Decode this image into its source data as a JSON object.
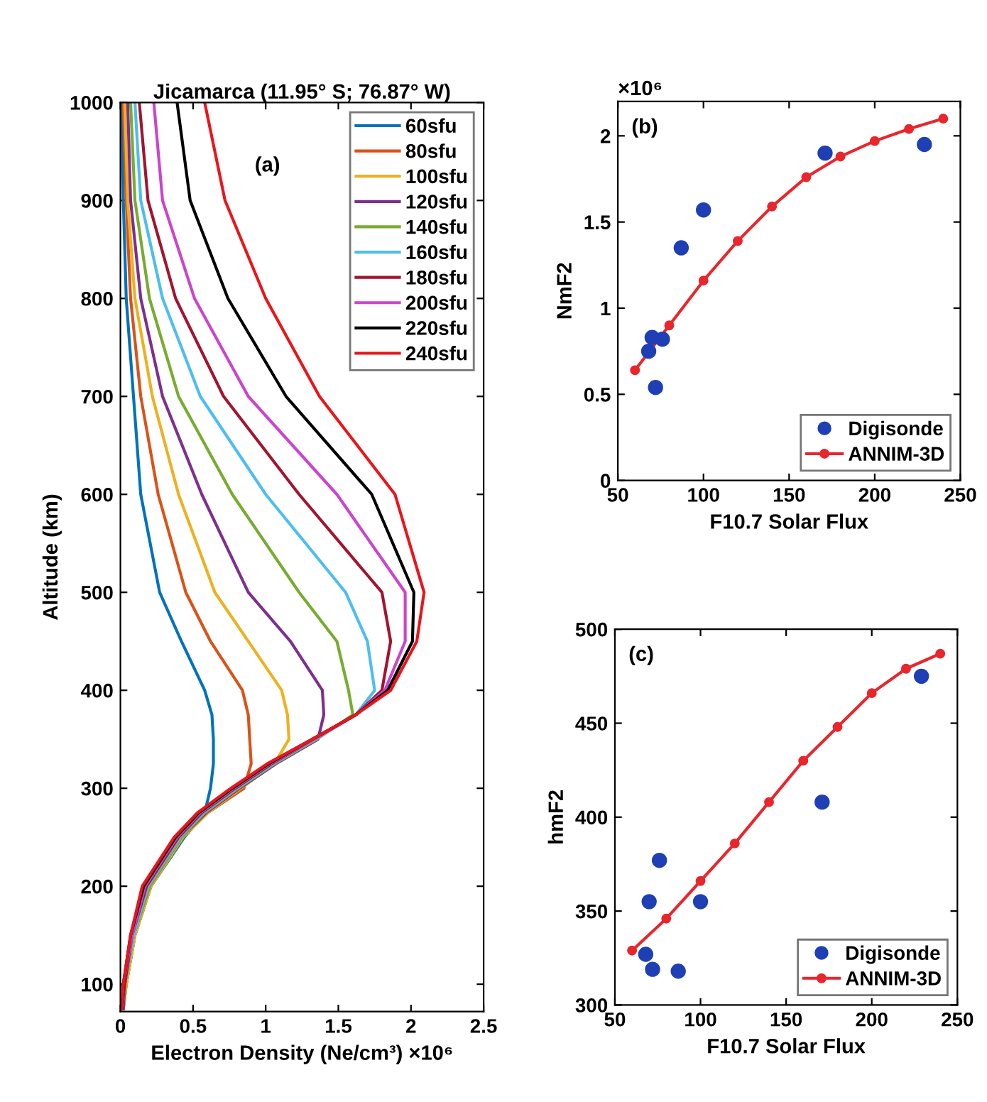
{
  "chart_data": [
    {
      "type": "line",
      "title": "Jicamarca (11.95° S; 76.87° W)",
      "xlabel": "Electron Density (Ne/cm³) ×10⁶",
      "ylabel": "Altitude (km)",
      "annotations": [
        "(a)"
      ],
      "xlim": [
        0,
        2.5
      ],
      "xticks": [
        0,
        0.5,
        1,
        1.5,
        2,
        2.5
      ],
      "ylim": [
        72,
        1000
      ],
      "yticks": [
        100,
        200,
        300,
        400,
        500,
        600,
        700,
        800,
        900,
        1000
      ],
      "legend": "top right",
      "grid": false,
      "series": [
        {
          "name": "60sfu",
          "color": "#0072bd",
          "x": [
            0.01,
            0.02,
            0.04,
            0.09,
            0.14,
            0.27,
            0.42,
            0.58,
            0.63,
            0.64,
            0.64,
            0.62,
            0.58,
            0.44,
            0.21,
            0.1,
            0.04,
            0.02
          ],
          "values": [
            1000,
            900,
            800,
            700,
            600,
            500,
            450,
            400,
            375,
            350,
            325,
            300,
            275,
            250,
            200,
            150,
            100,
            75
          ]
        },
        {
          "name": "80sfu",
          "color": "#d95319",
          "x": [
            0.02,
            0.04,
            0.07,
            0.14,
            0.26,
            0.45,
            0.62,
            0.84,
            0.88,
            0.89,
            0.9,
            0.85,
            0.6,
            0.43,
            0.21,
            0.1,
            0.04,
            0.02
          ],
          "values": [
            1000,
            900,
            800,
            700,
            600,
            500,
            450,
            400,
            375,
            350,
            325,
            300,
            275,
            250,
            200,
            150,
            100,
            75
          ]
        },
        {
          "name": "100sfu",
          "color": "#edb120",
          "x": [
            0.03,
            0.05,
            0.1,
            0.22,
            0.4,
            0.65,
            0.88,
            1.11,
            1.15,
            1.16,
            1.06,
            0.83,
            0.6,
            0.43,
            0.21,
            0.1,
            0.04,
            0.02
          ],
          "values": [
            1000,
            900,
            800,
            700,
            600,
            500,
            450,
            400,
            375,
            350,
            325,
            300,
            275,
            250,
            200,
            150,
            100,
            75
          ]
        },
        {
          "name": "120sfu",
          "color": "#7e2f8e",
          "x": [
            0.05,
            0.07,
            0.14,
            0.29,
            0.56,
            0.88,
            1.17,
            1.39,
            1.4,
            1.36,
            1.07,
            0.82,
            0.59,
            0.42,
            0.2,
            0.09,
            0.03,
            0.02
          ],
          "values": [
            1000,
            900,
            800,
            700,
            600,
            500,
            450,
            400,
            375,
            350,
            325,
            300,
            275,
            250,
            200,
            150,
            100,
            75
          ]
        },
        {
          "name": "140sfu",
          "color": "#77ac30",
          "x": [
            0.07,
            0.1,
            0.2,
            0.4,
            0.77,
            1.23,
            1.49,
            1.57,
            1.6,
            1.35,
            1.06,
            0.81,
            0.58,
            0.42,
            0.2,
            0.09,
            0.03,
            0.01
          ],
          "values": [
            1000,
            900,
            800,
            700,
            600,
            500,
            450,
            400,
            375,
            350,
            325,
            300,
            275,
            250,
            200,
            150,
            100,
            75
          ]
        },
        {
          "name": "160sfu",
          "color": "#4dbeee",
          "x": [
            0.1,
            0.14,
            0.29,
            0.55,
            1.0,
            1.55,
            1.7,
            1.75,
            1.62,
            1.34,
            1.05,
            0.8,
            0.57,
            0.41,
            0.19,
            0.09,
            0.03,
            0.01
          ],
          "values": [
            1000,
            900,
            800,
            700,
            600,
            500,
            450,
            400,
            375,
            350,
            325,
            300,
            275,
            250,
            200,
            150,
            100,
            75
          ]
        },
        {
          "name": "180sfu",
          "color": "#a2142f",
          "x": [
            0.13,
            0.19,
            0.38,
            0.71,
            1.23,
            1.8,
            1.86,
            1.8,
            1.62,
            1.33,
            1.04,
            0.79,
            0.56,
            0.4,
            0.18,
            0.08,
            0.03,
            0.01
          ],
          "values": [
            1000,
            900,
            800,
            700,
            600,
            500,
            450,
            400,
            375,
            350,
            325,
            300,
            275,
            250,
            200,
            150,
            100,
            75
          ]
        },
        {
          "name": "200sfu",
          "color": "#cc44cc",
          "x": [
            0.23,
            0.29,
            0.51,
            0.88,
            1.49,
            1.96,
            1.96,
            1.82,
            1.62,
            1.33,
            1.03,
            0.78,
            0.55,
            0.39,
            0.17,
            0.08,
            0.02,
            0.01
          ],
          "values": [
            1000,
            900,
            800,
            700,
            600,
            500,
            450,
            400,
            375,
            350,
            325,
            300,
            275,
            250,
            200,
            150,
            100,
            75
          ]
        },
        {
          "name": "220sfu",
          "color": "#000000",
          "x": [
            0.39,
            0.48,
            0.74,
            1.14,
            1.73,
            2.02,
            2.01,
            1.84,
            1.62,
            1.32,
            1.02,
            0.77,
            0.54,
            0.38,
            0.16,
            0.07,
            0.02,
            0.01
          ],
          "values": [
            1000,
            900,
            800,
            700,
            600,
            500,
            450,
            400,
            375,
            350,
            325,
            300,
            275,
            250,
            200,
            150,
            100,
            75
          ]
        },
        {
          "name": "240sfu",
          "color": "#e8161c",
          "x": [
            0.58,
            0.72,
            1.0,
            1.37,
            1.89,
            2.09,
            2.04,
            1.86,
            1.62,
            1.32,
            1.01,
            0.76,
            0.53,
            0.37,
            0.15,
            0.07,
            0.02,
            0.01
          ],
          "values": [
            1000,
            900,
            800,
            700,
            600,
            500,
            450,
            400,
            375,
            350,
            325,
            300,
            275,
            250,
            200,
            150,
            100,
            75
          ]
        }
      ]
    },
    {
      "type": "scatter",
      "xlabel": "F10.7 Solar Flux",
      "ylabel": "NmF2",
      "annotations": [
        "(b)",
        "×10⁶"
      ],
      "xlim": [
        50,
        250
      ],
      "xticks": [
        50,
        100,
        150,
        200,
        250
      ],
      "ylim": [
        0,
        2.2
      ],
      "yticks": [
        0,
        0.5,
        1,
        1.5,
        2
      ],
      "legend": "bottom right",
      "grid": false,
      "series": [
        {
          "name": "Digisonde",
          "type": "scatter",
          "marker": "circle",
          "color": "#1f3fb4",
          "x": [
            68,
            70,
            76,
            72,
            87,
            100,
            171,
            229
          ],
          "values": [
            0.75,
            0.83,
            0.82,
            0.54,
            1.35,
            1.57,
            1.9,
            1.95
          ]
        },
        {
          "name": "ANNIM-3D",
          "type": "line",
          "marker": "circle",
          "line_style": "solid",
          "color": "#e8262c",
          "x": [
            60,
            80,
            100,
            120,
            140,
            160,
            180,
            200,
            220,
            240
          ],
          "values": [
            0.64,
            0.9,
            1.16,
            1.39,
            1.59,
            1.76,
            1.88,
            1.97,
            2.04,
            2.1
          ]
        }
      ]
    },
    {
      "type": "scatter",
      "xlabel": "F10.7 Solar Flux",
      "ylabel": "hmF2",
      "annotations": [
        "(c)"
      ],
      "xlim": [
        50,
        250
      ],
      "xticks": [
        50,
        100,
        150,
        200,
        250
      ],
      "ylim": [
        300,
        500
      ],
      "yticks": [
        300,
        350,
        400,
        450,
        500
      ],
      "legend": "bottom right",
      "grid": false,
      "series": [
        {
          "name": "Digisonde",
          "type": "scatter",
          "marker": "circle",
          "color": "#1f3fb4",
          "x": [
            68,
            72,
            87,
            70,
            76,
            100,
            171,
            229
          ],
          "values": [
            327,
            319,
            318,
            355,
            377,
            355,
            408,
            475
          ]
        },
        {
          "name": "ANNIM-3D",
          "type": "line",
          "marker": "circle",
          "line_style": "solid",
          "color": "#e8262c",
          "x": [
            60,
            80,
            100,
            120,
            140,
            160,
            180,
            200,
            220,
            240
          ],
          "values": [
            329,
            346,
            366,
            386,
            408,
            430,
            448,
            466,
            479,
            487
          ]
        }
      ]
    }
  ]
}
